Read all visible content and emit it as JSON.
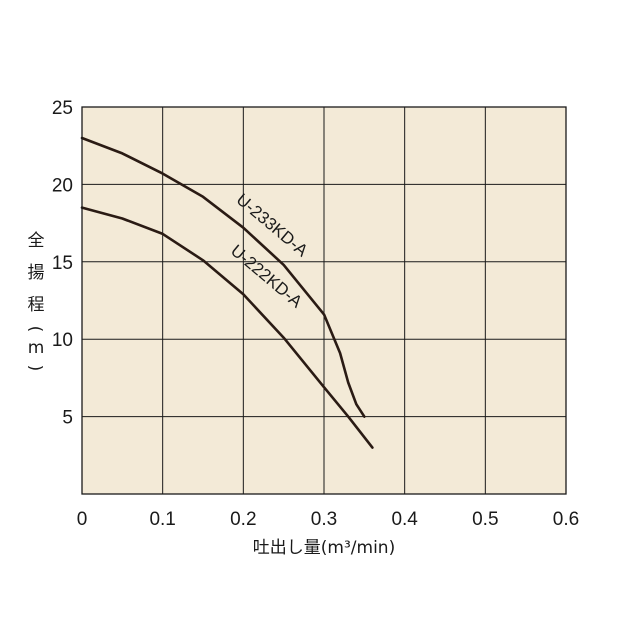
{
  "chart_data": {
    "type": "line",
    "title": "",
    "xlabel": "吐出し量(m³/min)",
    "ylabel": "全揚程(m)",
    "ylabel_chars": [
      "全",
      "揚",
      "程",
      "(",
      "m",
      ")"
    ],
    "xlim": [
      0,
      0.6
    ],
    "ylim": [
      0,
      25
    ],
    "x_ticks": [
      "0",
      "0.1",
      "0.2",
      "0.3",
      "0.4",
      "0.5",
      "0.6"
    ],
    "y_ticks": [
      "5",
      "10",
      "15",
      "20",
      "25"
    ],
    "grid": true,
    "legend": "none",
    "colors": {
      "background": "#f3ead7",
      "line": "#2a1b14",
      "grid": "#1a1a1a"
    },
    "series": [
      {
        "name": "U-233KD-A",
        "x": [
          0,
          0.05,
          0.1,
          0.15,
          0.2,
          0.25,
          0.3,
          0.32,
          0.33,
          0.34,
          0.35
        ],
        "y": [
          23.0,
          22.0,
          20.7,
          19.2,
          17.2,
          14.8,
          11.6,
          9.1,
          7.2,
          5.8,
          5.0
        ]
      },
      {
        "name": "U-222KD-A",
        "x": [
          0,
          0.05,
          0.1,
          0.15,
          0.2,
          0.25,
          0.3,
          0.33,
          0.36
        ],
        "y": [
          18.5,
          17.8,
          16.8,
          15.1,
          12.9,
          10.1,
          6.9,
          5.0,
          3.0
        ]
      }
    ]
  }
}
